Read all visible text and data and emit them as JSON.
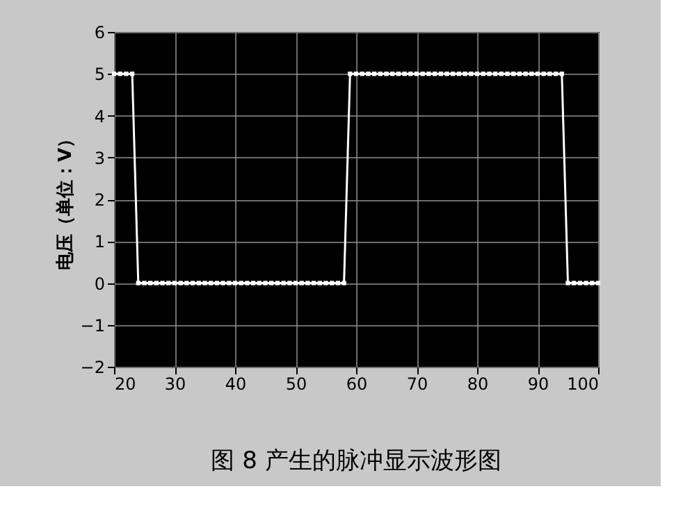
{
  "chart_data": {
    "type": "line",
    "ylabel": "电压（单位：V）",
    "annotations": [
      "图 8  产生的脉冲显示波形图"
    ],
    "x": [
      20,
      21,
      22,
      23,
      24,
      25,
      26,
      27,
      28,
      29,
      30,
      31,
      32,
      33,
      34,
      35,
      36,
      37,
      38,
      39,
      40,
      41,
      42,
      43,
      44,
      45,
      46,
      47,
      48,
      49,
      50,
      51,
      52,
      53,
      54,
      55,
      56,
      57,
      58,
      59,
      60,
      61,
      62,
      63,
      64,
      65,
      66,
      67,
      68,
      69,
      70,
      71,
      72,
      73,
      74,
      75,
      76,
      77,
      78,
      79,
      80,
      81,
      82,
      83,
      84,
      85,
      86,
      87,
      88,
      89,
      90,
      91,
      92,
      93,
      94,
      95,
      96,
      97,
      98,
      99,
      100
    ],
    "series": [
      {
        "color": "#ffffff",
        "values": [
          5,
          5,
          5,
          5,
          0,
          0,
          0,
          0,
          0,
          0,
          0,
          0,
          0,
          0,
          0,
          0,
          0,
          0,
          0,
          0,
          0,
          0,
          0,
          0,
          0,
          0,
          0,
          0,
          0,
          0,
          0,
          0,
          0,
          0,
          0,
          0,
          0,
          0,
          0,
          5,
          5,
          5,
          5,
          5,
          5,
          5,
          5,
          5,
          5,
          5,
          5,
          5,
          5,
          5,
          5,
          5,
          5,
          5,
          5,
          5,
          5,
          5,
          5,
          5,
          5,
          5,
          5,
          5,
          5,
          5,
          5,
          5,
          5,
          5,
          5,
          0,
          0,
          0,
          0,
          0,
          0
        ]
      }
    ],
    "xlim": [
      20,
      100
    ],
    "ylim": [
      -2,
      6
    ],
    "xticks": [
      20,
      30,
      40,
      50,
      60,
      70,
      80,
      90,
      100
    ],
    "yticks": [
      -2,
      -1,
      0,
      1,
      2,
      3,
      4,
      5,
      6
    ],
    "grid": true,
    "marker": "square",
    "line_style": "solid"
  }
}
